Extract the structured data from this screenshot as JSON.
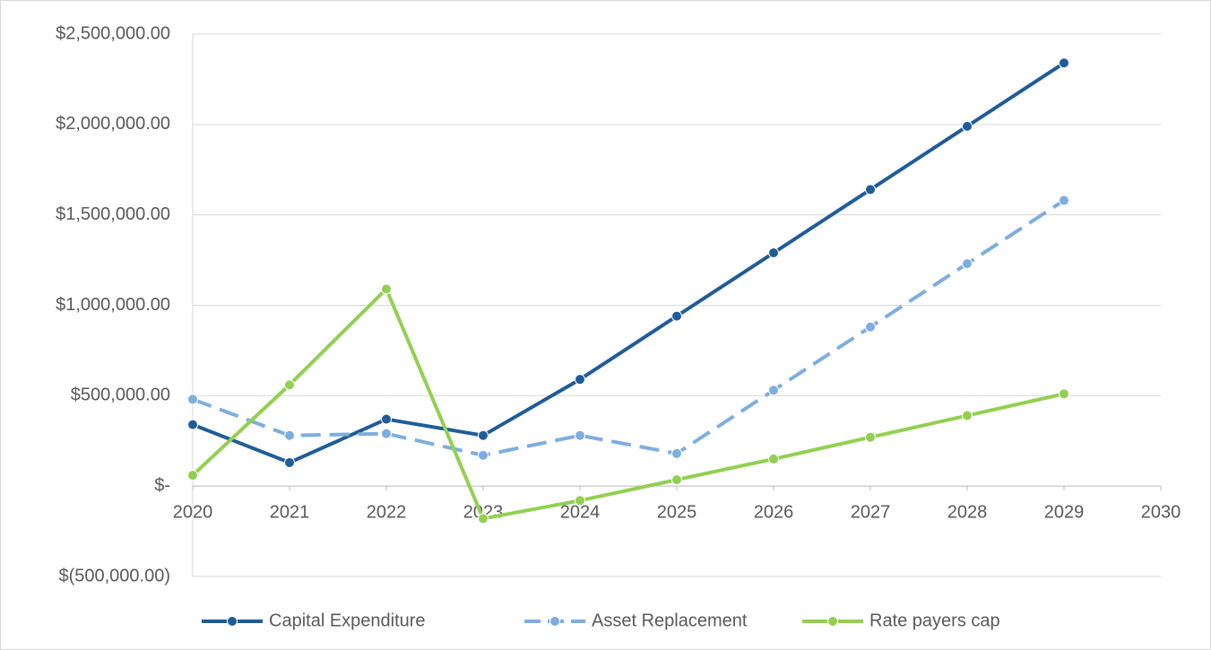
{
  "chart_data": {
    "type": "line",
    "x": [
      2020,
      2021,
      2022,
      2023,
      2024,
      2025,
      2026,
      2027,
      2028,
      2029
    ],
    "xlim": [
      2020,
      2030
    ],
    "xticks": [
      2020,
      2021,
      2022,
      2023,
      2024,
      2025,
      2026,
      2027,
      2028,
      2029,
      2030
    ],
    "ylim": [
      -500000,
      2500000
    ],
    "yticks": [
      {
        "value": -500000,
        "label": "$(500,000.00)"
      },
      {
        "value": 0,
        "label": "$-"
      },
      {
        "value": 500000,
        "label": "$500,000.00"
      },
      {
        "value": 1000000,
        "label": "$1,000,000.00"
      },
      {
        "value": 1500000,
        "label": "$1,500,000.00"
      },
      {
        "value": 2000000,
        "label": "$2,000,000.00"
      },
      {
        "value": 2500000,
        "label": "$2,500,000.00"
      }
    ],
    "grid": true,
    "legend": "bottom",
    "series": [
      {
        "name": "Capital Expenditure",
        "color": "#1f5c99",
        "dashed": false,
        "values": [
          340000,
          130000,
          370000,
          280000,
          590000,
          940000,
          1290000,
          1640000,
          1990000,
          2340000
        ]
      },
      {
        "name": "Asset Replacement",
        "color": "#7eaee0",
        "dashed": true,
        "values": [
          480000,
          280000,
          290000,
          170000,
          280000,
          180000,
          530000,
          880000,
          1230000,
          1580000
        ]
      },
      {
        "name": "Rate payers cap",
        "color": "#92d050",
        "dashed": false,
        "values": [
          60000,
          560000,
          1090000,
          -180000,
          -80000,
          35000,
          150000,
          270000,
          390000,
          510000
        ]
      }
    ]
  }
}
